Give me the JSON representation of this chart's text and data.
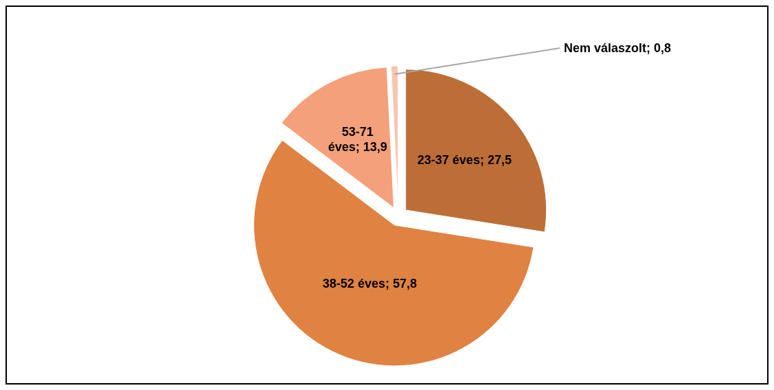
{
  "chart_data": {
    "type": "pie",
    "categories": [
      "23-37 éves",
      "38-52 éves",
      "53-71 éves",
      "Nem válaszolt"
    ],
    "values": [
      27.5,
      57.8,
      13.9,
      0.8
    ],
    "value_labels": [
      "27,5",
      "57,8",
      "13,9",
      "0,8"
    ],
    "colors": [
      "#bd6e36",
      "#e08241",
      "#f4a07a",
      "#f7c5b0"
    ]
  }
}
